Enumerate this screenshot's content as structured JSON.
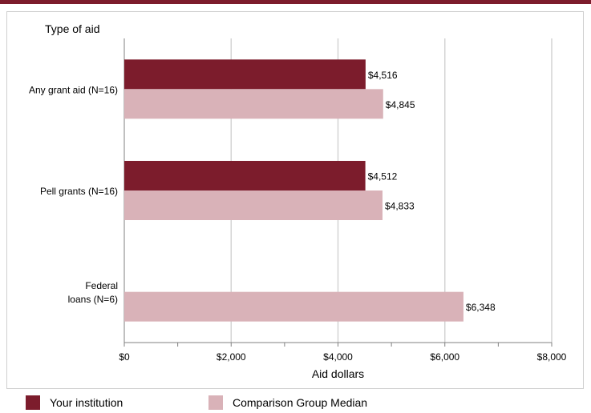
{
  "chart_data": {
    "type": "bar",
    "orientation": "horizontal",
    "ytitle": "Type of aid",
    "xlabel": "Aid dollars",
    "xlim": [
      0,
      8000
    ],
    "xticks": [
      "$0",
      "$2,000",
      "$4,000",
      "$6,000",
      "$8,000"
    ],
    "categories": [
      "Any grant aid (N=16)",
      "Pell grants (N=16)",
      "Federal loans (N=6)"
    ],
    "category_lines": [
      [
        "Any grant aid (N=16)"
      ],
      [
        "Pell grants (N=16)"
      ],
      [
        "Federal",
        "loans (N=6)"
      ]
    ],
    "series": [
      {
        "name": "Your institution",
        "color": "#7c1c2c",
        "values": [
          4516,
          4512,
          null
        ],
        "labels": [
          "$4,516",
          "$4,512",
          null
        ]
      },
      {
        "name": "Comparison Group Median",
        "color": "#d9b2b8",
        "values": [
          4845,
          4833,
          6348
        ],
        "labels": [
          "$4,845",
          "$4,833",
          "$6,348"
        ]
      }
    ],
    "grid": true,
    "legend": "bottom"
  }
}
